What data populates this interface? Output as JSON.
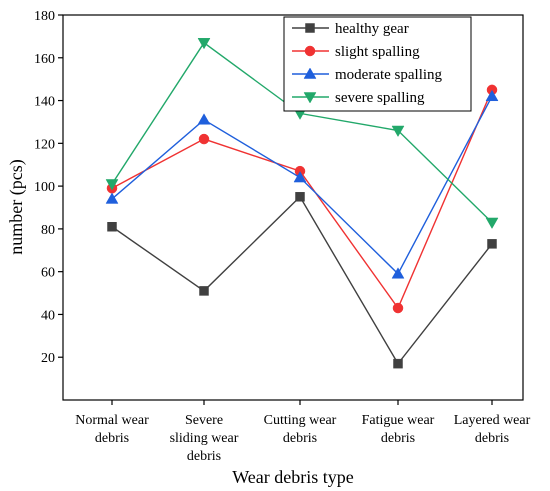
{
  "chart_data": {
    "type": "line",
    "xlabel": "Wear debris type",
    "ylabel": "number (pcs)",
    "categories": [
      [
        "Normal wear",
        "debris"
      ],
      [
        "Severe",
        "sliding wear",
        "debris"
      ],
      [
        "Cutting wear",
        "debris"
      ],
      [
        "Fatigue wear",
        "debris"
      ],
      [
        "Layered wear",
        "debris"
      ]
    ],
    "ylim": [
      0,
      180
    ],
    "yticks": [
      20,
      40,
      60,
      80,
      100,
      120,
      140,
      160,
      180
    ],
    "grid": false,
    "legend_position": "top-right",
    "series": [
      {
        "name": "healthy gear",
        "color": "#404040",
        "marker": "square",
        "values": [
          81,
          51,
          95,
          17,
          73
        ]
      },
      {
        "name": "slight spalling",
        "color": "#f03232",
        "marker": "circle",
        "values": [
          99,
          122,
          107,
          43,
          145
        ]
      },
      {
        "name": "moderate spalling",
        "color": "#1f5fdc",
        "marker": "triangle-up",
        "values": [
          94,
          131,
          104,
          59,
          142
        ]
      },
      {
        "name": "severe spalling",
        "color": "#22a86a",
        "marker": "triangle-down",
        "values": [
          101,
          167,
          134,
          126,
          83
        ]
      }
    ]
  }
}
